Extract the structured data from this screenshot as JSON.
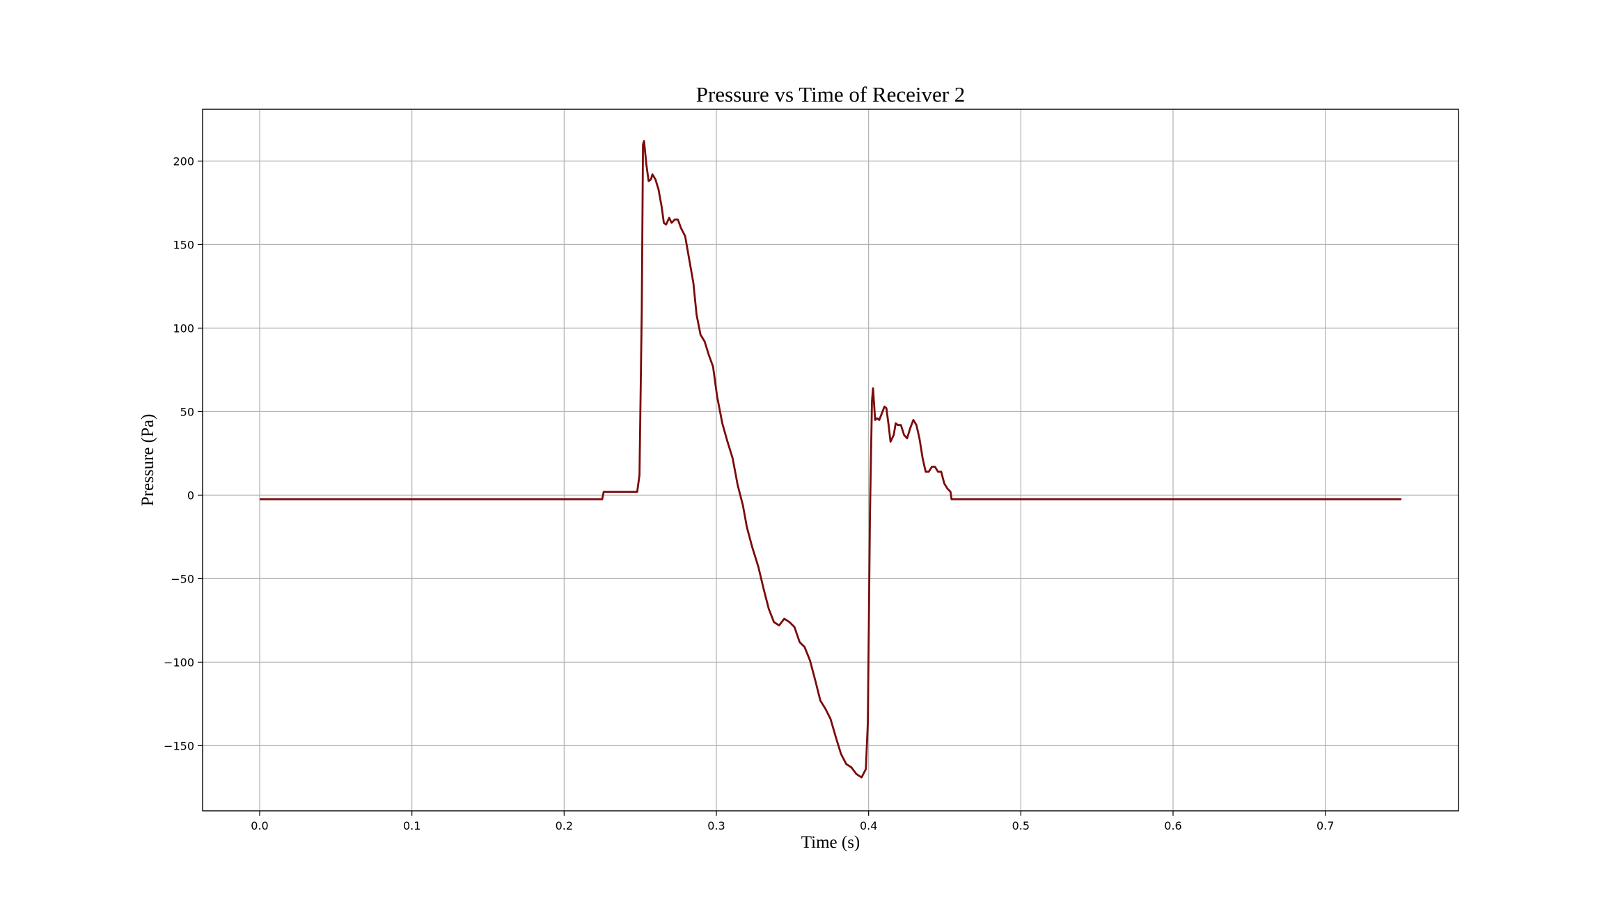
{
  "chart_data": {
    "type": "line",
    "title": "Pressure vs Time of Receiver 2",
    "x_label": "Time (s)",
    "y_label": "Pressure (Pa)",
    "x": [
      0,
      0.225,
      0.226,
      0.248,
      0.2495,
      0.251,
      0.2518,
      0.2525,
      0.254,
      0.2555,
      0.257,
      0.258,
      0.26,
      0.262,
      0.264,
      0.2655,
      0.267,
      0.269,
      0.2706,
      0.2727,
      0.2747,
      0.2767,
      0.2795,
      0.282,
      0.2849,
      0.287,
      0.2896,
      0.2923,
      0.295,
      0.2978,
      0.3005,
      0.3039,
      0.3073,
      0.3107,
      0.314,
      0.3174,
      0.32,
      0.3235,
      0.3276,
      0.331,
      0.3344,
      0.3378,
      0.3412,
      0.3446,
      0.348,
      0.3513,
      0.3547,
      0.358,
      0.3615,
      0.365,
      0.3683,
      0.3717,
      0.375,
      0.3785,
      0.3819,
      0.3853,
      0.3887,
      0.392,
      0.3954,
      0.3982,
      0.3995,
      0.4009,
      0.4022,
      0.4029,
      0.4043,
      0.4056,
      0.407,
      0.4083,
      0.4104,
      0.4117,
      0.413,
      0.4144,
      0.4165,
      0.4178,
      0.4192,
      0.4212,
      0.4233,
      0.4253,
      0.4273,
      0.4294,
      0.4314,
      0.4334,
      0.4355,
      0.4375,
      0.4395,
      0.4416,
      0.4436,
      0.4456,
      0.4477,
      0.4497,
      0.4517,
      0.4538,
      0.4545,
      0.75
    ],
    "series": [
      {
        "name": "Receiver 2",
        "color": "#7b0a0a",
        "values": [
          -2.5,
          -2.5,
          2,
          2,
          12,
          111,
          210,
          212,
          198,
          188,
          189,
          192,
          189,
          183,
          173,
          163,
          162,
          166,
          163,
          165,
          165,
          160,
          155,
          142,
          127,
          108,
          96,
          92,
          84,
          77,
          59,
          43,
          32,
          22,
          6,
          -6,
          -19,
          -31,
          -43,
          -56,
          -68,
          -76,
          -78,
          -74,
          -76,
          -79,
          -88,
          -91,
          -99,
          -111,
          -123,
          -128,
          -134,
          -145,
          -155,
          -161,
          -163,
          -167,
          -169,
          -164,
          -136,
          -12,
          56,
          64,
          45,
          46,
          45,
          48,
          53,
          52,
          43,
          32,
          36,
          43,
          42,
          42,
          36,
          34,
          40,
          45,
          42,
          34,
          22,
          14,
          14,
          17,
          17,
          14,
          14,
          7,
          4,
          2,
          -2.5,
          -2.5
        ]
      }
    ],
    "xlim": [
      -0.0375,
      0.7875
    ],
    "ylim": [
      -189,
      231
    ],
    "xticks": [
      {
        "value": 0,
        "label": "0.0"
      },
      0.1,
      0.2,
      0.3,
      0.4,
      0.5,
      0.6,
      0.7
    ],
    "yticks": [
      {
        "value": -150,
        "label": "−150"
      },
      {
        "value": -100,
        "label": "−100"
      },
      {
        "value": -50,
        "label": "−50"
      },
      0,
      50,
      100,
      150,
      200
    ],
    "grid": true
  }
}
